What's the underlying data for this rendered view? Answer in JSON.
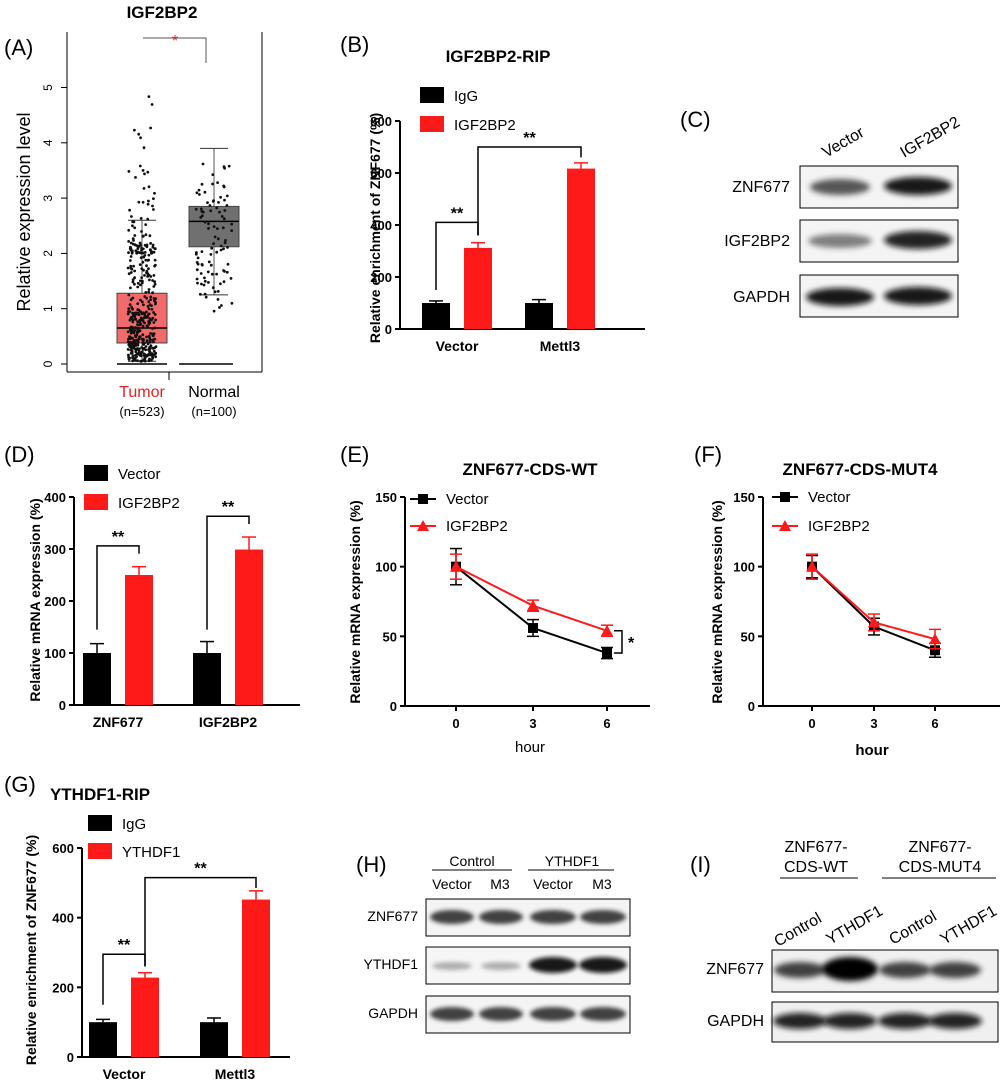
{
  "colors": {
    "red": "#ff1a1a",
    "black": "#000000",
    "tumor_box": "#f26b6b",
    "normal_box": "#707070",
    "star_red": "#e8201e"
  },
  "panelA": {
    "letter": "(A)",
    "title": "IGF2BP2",
    "ylabel": "Relative expression level",
    "yticks": [
      "0",
      "1",
      "2",
      "3",
      "4",
      "5"
    ],
    "star": "*",
    "groups": [
      {
        "label": "Tumor",
        "n": "(n=523)"
      },
      {
        "label": "Normal",
        "n": "(n=100)"
      }
    ]
  },
  "panelB": {
    "letter": "(B)",
    "title": "IGF2BP2-RIP",
    "ylabel": "Relative enrichment of ZNF677 (%)",
    "legend": [
      "IgG",
      "IGF2BP2"
    ],
    "yticks": [
      "0",
      "200",
      "400",
      "600",
      "800"
    ],
    "categories": [
      "Vector",
      "Mettl3"
    ],
    "sig": [
      "**",
      "**"
    ]
  },
  "panelC": {
    "letter": "(C)",
    "lanes": [
      "Vector",
      "IGF2BP2"
    ],
    "rows": [
      "ZNF677",
      "IGF2BP2",
      "GAPDH"
    ]
  },
  "panelD": {
    "letter": "(D)",
    "ylabel": "Relative mRNA  expression (%)",
    "legend": [
      "Vector",
      "IGF2BP2"
    ],
    "yticks": [
      "0",
      "100",
      "200",
      "300",
      "400"
    ],
    "categories": [
      "ZNF677",
      "IGF2BP2"
    ],
    "sig": [
      "**",
      "**"
    ]
  },
  "panelE": {
    "letter": "(E)",
    "title": "ZNF677-CDS-WT",
    "ylabel": "Relative mRNA  expression (%)",
    "xlabel": "hour",
    "legend": [
      "Vector",
      "IGF2BP2"
    ],
    "yticks": [
      "0",
      "50",
      "100",
      "150"
    ],
    "xticks": [
      "0",
      "3",
      "6"
    ],
    "sig": "*"
  },
  "panelF": {
    "letter": "(F)",
    "title": "ZNF677-CDS-MUT4",
    "ylabel": "Relative mRNA  expression (%)",
    "xlabel": "hour",
    "legend": [
      "Vector",
      "IGF2BP2"
    ],
    "yticks": [
      "0",
      "50",
      "100",
      "150"
    ],
    "xticks": [
      "0",
      "3",
      "6"
    ]
  },
  "panelG": {
    "letter": "(G)",
    "title": "YTHDF1-RIP",
    "ylabel": "Relative enrichment of ZNF677 (%)",
    "legend": [
      "IgG",
      "YTHDF1"
    ],
    "yticks": [
      "0",
      "200",
      "400",
      "600"
    ],
    "categories": [
      "Vector",
      "Mettl3"
    ],
    "sig": [
      "**",
      "**"
    ]
  },
  "panelH": {
    "letter": "(H)",
    "groups": [
      "Control",
      "YTHDF1"
    ],
    "lanes": [
      "Vector",
      "M3",
      "Vector",
      "M3"
    ],
    "rows": [
      "ZNF677",
      "YTHDF1",
      "GAPDH"
    ]
  },
  "panelI": {
    "letter": "(I)",
    "groups": [
      "ZNF677-\nCDS-WT",
      "ZNF677-\nCDS-MUT4"
    ],
    "lanes": [
      "Control",
      "YTHDF1",
      "Control",
      "YTHDF1"
    ],
    "rows": [
      "ZNF677",
      "GAPDH"
    ]
  },
  "chart_data": [
    {
      "type": "box",
      "title": "IGF2BP2",
      "ylabel": "Relative expression level",
      "ylim": [
        0,
        5.5
      ],
      "categories": [
        "Tumor",
        "Normal"
      ],
      "boxes": [
        {
          "name": "Tumor",
          "min": 0.05,
          "q1": 0.38,
          "median": 0.65,
          "q3": 1.28,
          "max": 2.6,
          "n": 523
        },
        {
          "name": "Normal",
          "min": 1.25,
          "q1": 2.12,
          "median": 2.58,
          "q3": 2.85,
          "max": 3.9,
          "n": 100
        }
      ]
    },
    {
      "type": "bar",
      "title": "IGF2BP2-RIP",
      "ylabel": "Relative enrichment of ZNF677 (%)",
      "ylim": [
        0,
        800
      ],
      "categories": [
        "Vector",
        "Mettl3"
      ],
      "series": [
        {
          "name": "IgG",
          "values": [
            100,
            100
          ],
          "errors": [
            8,
            13
          ]
        },
        {
          "name": "IGF2BP2",
          "values": [
            312,
            617
          ],
          "errors": [
            20,
            22
          ]
        }
      ]
    },
    {
      "type": "bar",
      "ylabel": "Relative mRNA  expression (%)",
      "ylim": [
        0,
        400
      ],
      "categories": [
        "ZNF677",
        "IGF2BP2"
      ],
      "series": [
        {
          "name": "Vector",
          "values": [
            100,
            100
          ],
          "errors": [
            18,
            22
          ]
        },
        {
          "name": "IGF2BP2",
          "values": [
            250,
            299
          ],
          "errors": [
            16,
            24
          ]
        }
      ]
    },
    {
      "type": "line",
      "title": "ZNF677-CDS-WT",
      "xlabel": "hour",
      "ylabel": "Relative mRNA  expression (%)",
      "ylim": [
        0,
        150
      ],
      "x": [
        0,
        3,
        6
      ],
      "series": [
        {
          "name": "Vector",
          "values": [
            100,
            56,
            38
          ],
          "errors": [
            13,
            6,
            4
          ]
        },
        {
          "name": "IGF2BP2",
          "values": [
            100,
            72,
            54
          ],
          "errors": [
            9,
            4,
            4
          ]
        }
      ]
    },
    {
      "type": "line",
      "title": "ZNF677-CDS-MUT4",
      "xlabel": "hour",
      "ylabel": "Relative mRNA  expression (%)",
      "ylim": [
        0,
        150
      ],
      "x": [
        0,
        3,
        6
      ],
      "series": [
        {
          "name": "Vector",
          "values": [
            100,
            57,
            40
          ],
          "errors": [
            8,
            6,
            5
          ]
        },
        {
          "name": "IGF2BP2",
          "values": [
            100,
            60,
            48
          ],
          "errors": [
            9,
            6,
            7
          ]
        }
      ]
    },
    {
      "type": "bar",
      "title": "YTHDF1-RIP",
      "ylabel": "Relative enrichment of ZNF677 (%)",
      "ylim": [
        0,
        600
      ],
      "categories": [
        "Vector",
        "Mettl3"
      ],
      "series": [
        {
          "name": "IgG",
          "values": [
            100,
            100
          ],
          "errors": [
            8,
            12
          ]
        },
        {
          "name": "YTHDF1",
          "values": [
            228,
            452
          ],
          "errors": [
            14,
            25
          ]
        }
      ]
    }
  ]
}
